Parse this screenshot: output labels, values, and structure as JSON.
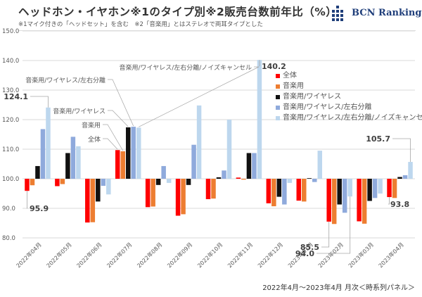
{
  "header": {
    "title": "ヘッドホン・イヤホン※1のタイプ別※2販売台数前年比（%）",
    "subtitle": "※1マイク付きの「ヘッドセット」を含む　※2「音楽用」とはステレオで両耳タイプとした",
    "logo_text": "BCN Ranking"
  },
  "footer": "2022年4月～2023年4月 月次＜時系列パネル＞",
  "chart_data": {
    "type": "bar",
    "title": "ヘッドホン・イヤホン※1のタイプ別※2販売台数前年比（%）",
    "xlabel": "",
    "ylabel": "",
    "ylim": [
      80,
      150
    ],
    "baseline": 100,
    "grid": true,
    "legend_position": "right",
    "yticks": [
      "80.0",
      "90.0",
      "100.0",
      "110.0",
      "120.0",
      "130.0",
      "140.0",
      "150.0"
    ],
    "categories": [
      "2022年04月",
      "2022年05月",
      "2022年06月",
      "2022年07月",
      "2022年08月",
      "2022年09月",
      "2022年10月",
      "2022年11月",
      "2022年12月",
      "2023年01月",
      "2023年02月",
      "2023年03月",
      "2023年04月"
    ],
    "series": [
      {
        "name": "全体",
        "color": "#ff0000",
        "values": [
          95.9,
          97.5,
          85.2,
          109.7,
          90.4,
          87.5,
          93.1,
          100.4,
          91.7,
          92.6,
          85.5,
          85.6,
          93.8
        ]
      },
      {
        "name": "音楽用",
        "color": "#ed7d31",
        "values": [
          97.8,
          98.2,
          85.3,
          109.3,
          90.6,
          88.0,
          93.3,
          99.7,
          90.7,
          92.3,
          84.7,
          84.8,
          93.5
        ]
      },
      {
        "name": "音楽用/ワイヤレス",
        "color": "#111111",
        "values": [
          104.3,
          108.7,
          92.3,
          117.4,
          97.9,
          97.9,
          100.5,
          108.7,
          93.9,
          100.2,
          91.3,
          92.5,
          100.6
        ]
      },
      {
        "name": "音楽用/ワイヤレス/左右分離",
        "color": "#8faadc",
        "values": [
          116.8,
          114.2,
          97.6,
          117.6,
          104.3,
          111.5,
          102.8,
          108.7,
          91.3,
          98.9,
          88.5,
          93.5,
          101.2
        ]
      },
      {
        "name": "音楽用/ワイヤレス/左右分離/ノイズキャンセル",
        "color": "#bdd7ee",
        "values": [
          124.1,
          111.0,
          94.7,
          117.3,
          98.6,
          124.8,
          120.0,
          140.2,
          98.6,
          109.5,
          94.0,
          95.0,
          105.7
        ]
      }
    ],
    "data_labels": [
      {
        "text": "124.1",
        "series": 4,
        "category": 0
      },
      {
        "text": "95.9",
        "series": 0,
        "category": 0
      },
      {
        "text": "140.2",
        "series": 4,
        "category": 7
      },
      {
        "text": "85.5",
        "series": 0,
        "category": 10
      },
      {
        "text": "94.0",
        "series": 4,
        "category": 10
      },
      {
        "text": "105.7",
        "series": 4,
        "category": 12
      },
      {
        "text": "93.8",
        "series": 0,
        "category": 12
      }
    ],
    "annotations": [
      {
        "text": "全体",
        "series": 0,
        "category": 3
      },
      {
        "text": "音楽用",
        "series": 1,
        "category": 3
      },
      {
        "text": "音楽用/ワイヤレス",
        "series": 2,
        "category": 3
      },
      {
        "text": "音楽用/ワイヤレス/左右分離",
        "series": 3,
        "category": 3
      },
      {
        "text": "音楽用/ワイヤレス/左右分離/ノイズキャンセル",
        "series": 4,
        "category": 3
      }
    ]
  }
}
